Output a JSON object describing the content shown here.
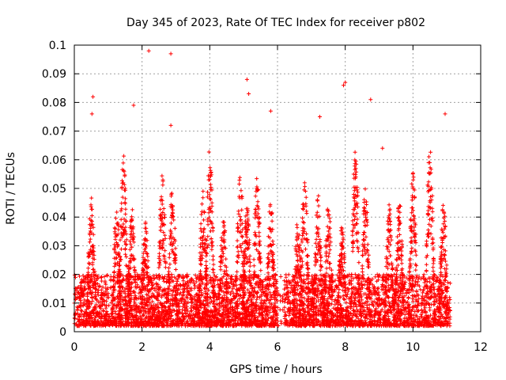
{
  "chart_data": {
    "type": "scatter",
    "title": "Day 345 of 2023, Rate Of TEC Index for receiver p802",
    "xlabel": "GPS time / hours",
    "ylabel": "ROTI / TECUs",
    "xlim": [
      0,
      12
    ],
    "ylim": [
      0,
      0.1
    ],
    "xticks": [
      0,
      2,
      4,
      6,
      8,
      10,
      12
    ],
    "yticks": [
      0,
      0.01,
      0.02,
      0.03,
      0.04,
      0.05,
      0.06,
      0.07,
      0.08,
      0.09,
      0.1
    ],
    "xtick_labels": [
      "0",
      "2",
      "4",
      "6",
      "8",
      "10",
      "12"
    ],
    "ytick_labels": [
      "0",
      "0.01",
      "0.02",
      "0.03",
      "0.04",
      "0.05",
      "0.06",
      "0.07",
      "0.08",
      "0.09",
      "0.1"
    ],
    "grid": true,
    "marker": "+",
    "color": "#ff0000",
    "x_data_range": [
      0,
      11.1
    ],
    "dense_points_note": "thousands of '+' markers concentrated between 0 and 0.02 TECU across 0–11.1 h",
    "notable_points": [
      {
        "x": 0.55,
        "y": 0.082
      },
      {
        "x": 0.52,
        "y": 0.076
      },
      {
        "x": 1.75,
        "y": 0.079
      },
      {
        "x": 2.2,
        "y": 0.098
      },
      {
        "x": 2.85,
        "y": 0.097
      },
      {
        "x": 2.85,
        "y": 0.072
      },
      {
        "x": 5.1,
        "y": 0.088
      },
      {
        "x": 5.15,
        "y": 0.083
      },
      {
        "x": 5.8,
        "y": 0.077
      },
      {
        "x": 7.25,
        "y": 0.075
      },
      {
        "x": 7.95,
        "y": 0.086
      },
      {
        "x": 8.0,
        "y": 0.087
      },
      {
        "x": 8.75,
        "y": 0.081
      },
      {
        "x": 9.1,
        "y": 0.064
      },
      {
        "x": 10.95,
        "y": 0.076
      }
    ]
  }
}
